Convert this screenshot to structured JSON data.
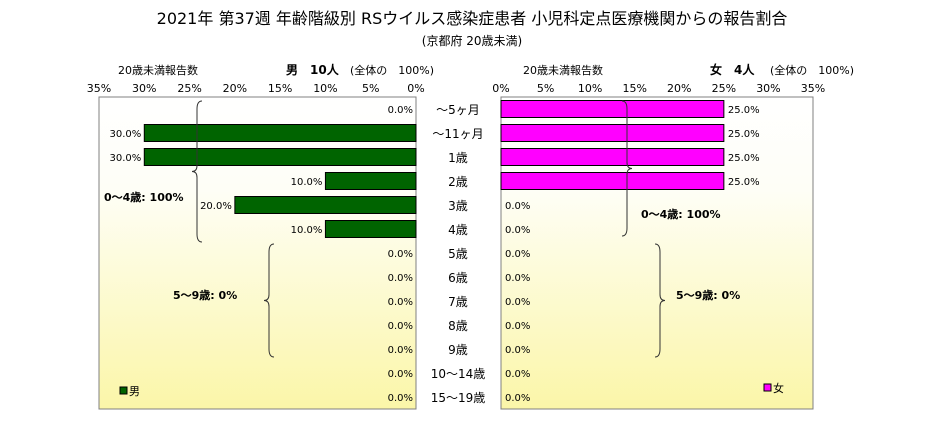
{
  "title": "2021年 第37週 年齢階級別 RSウイルス感染症患者 小児科定点医療機関からの報告割合",
  "subtitle": "(京都府 20歳未満)",
  "left_header": {
    "count_label": "20歳未満報告数",
    "gender_count": "男　10人",
    "total_label": "(全体の　100%)"
  },
  "right_header": {
    "count_label": "20歳未満報告数",
    "gender_count": "女　4人",
    "total_label": "(全体の　100%)"
  },
  "colors": {
    "male": "#006400",
    "female": "#ff00ff"
  },
  "chart_data": [
    {
      "type": "bar",
      "orientation": "horizontal-reversed",
      "categories": [
        "～5ヶ月",
        "～11ヶ月",
        "1歳",
        "2歳",
        "3歳",
        "4歳",
        "5歳",
        "6歳",
        "7歳",
        "8歳",
        "9歳",
        "10～14歳",
        "15～19歳"
      ],
      "series": [
        {
          "name": "男",
          "values": [
            0,
            30,
            30,
            10,
            20,
            10,
            0,
            0,
            0,
            0,
            0,
            0,
            0
          ]
        }
      ],
      "data_labels": [
        "0.0%",
        "30.0%",
        "30.0%",
        "10.0%",
        "20.0%",
        "10.0%",
        "0.0%",
        "0.0%",
        "0.0%",
        "0.0%",
        "0.0%",
        "0.0%",
        "0.0%"
      ],
      "xlim": [
        0,
        35
      ],
      "ticks": [
        "35%",
        "30%",
        "25%",
        "20%",
        "15%",
        "10%",
        "5%",
        "0%"
      ],
      "annotations": [
        "0～4歳: 100%",
        "5～9歳: 0%"
      ],
      "legend": "bottom-left"
    },
    {
      "type": "bar",
      "orientation": "horizontal",
      "categories": [
        "～5ヶ月",
        "～11ヶ月",
        "1歳",
        "2歳",
        "3歳",
        "4歳",
        "5歳",
        "6歳",
        "7歳",
        "8歳",
        "9歳",
        "10～14歳",
        "15～19歳"
      ],
      "series": [
        {
          "name": "女",
          "values": [
            25,
            25,
            25,
            25,
            0,
            0,
            0,
            0,
            0,
            0,
            0,
            0,
            0
          ]
        }
      ],
      "data_labels": [
        "25.0%",
        "25.0%",
        "25.0%",
        "25.0%",
        "0.0%",
        "0.0%",
        "0.0%",
        "0.0%",
        "0.0%",
        "0.0%",
        "0.0%",
        "0.0%",
        "0.0%"
      ],
      "xlim": [
        0,
        35
      ],
      "ticks": [
        "0%",
        "5%",
        "10%",
        "15%",
        "20%",
        "25%",
        "30%",
        "35%"
      ],
      "annotations": [
        "0～4歳: 100%",
        "5～9歳: 0%"
      ],
      "legend": "bottom-right"
    }
  ]
}
